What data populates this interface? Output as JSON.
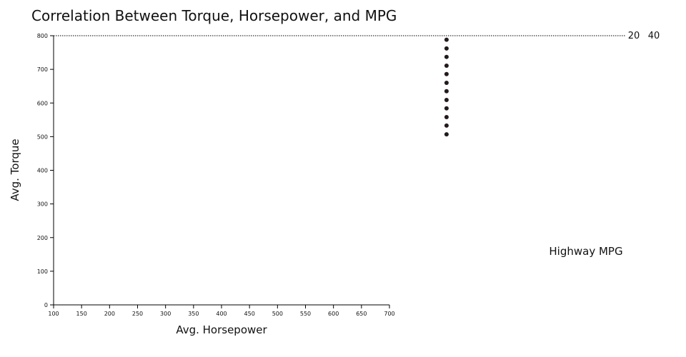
{
  "chart_data": {
    "type": "scatter",
    "title": "Correlation Between Torque, Horsepower, and MPG",
    "xlabel": "Avg. Horsepower",
    "ylabel": "Avg. Torque",
    "xlim": [
      100,
      700
    ],
    "ylim": [
      0,
      800
    ],
    "xticks": [
      "100",
      "150",
      "200",
      "250",
      "300",
      "350",
      "400",
      "450",
      "500",
      "550",
      "600",
      "650",
      "700"
    ],
    "yticks": [
      "0",
      "100",
      "200",
      "300",
      "400",
      "500",
      "600",
      "700",
      "800"
    ],
    "grid": false,
    "reference_line": {
      "y": 800,
      "style": "dotted"
    },
    "legend": {
      "title": "Highway MPG",
      "labels": [
        "20",
        "40"
      ],
      "placement": "right"
    },
    "points": [
      {
        "x": 802,
        "y": 788
      },
      {
        "x": 802,
        "y": 762
      },
      {
        "x": 802,
        "y": 737
      },
      {
        "x": 802,
        "y": 711
      },
      {
        "x": 802,
        "y": 686
      },
      {
        "x": 802,
        "y": 660
      },
      {
        "x": 802,
        "y": 635
      },
      {
        "x": 802,
        "y": 609
      },
      {
        "x": 802,
        "y": 584
      },
      {
        "x": 802,
        "y": 558
      },
      {
        "x": 802,
        "y": 533
      },
      {
        "x": 802,
        "y": 507
      }
    ],
    "point_color": "#231a1c"
  }
}
